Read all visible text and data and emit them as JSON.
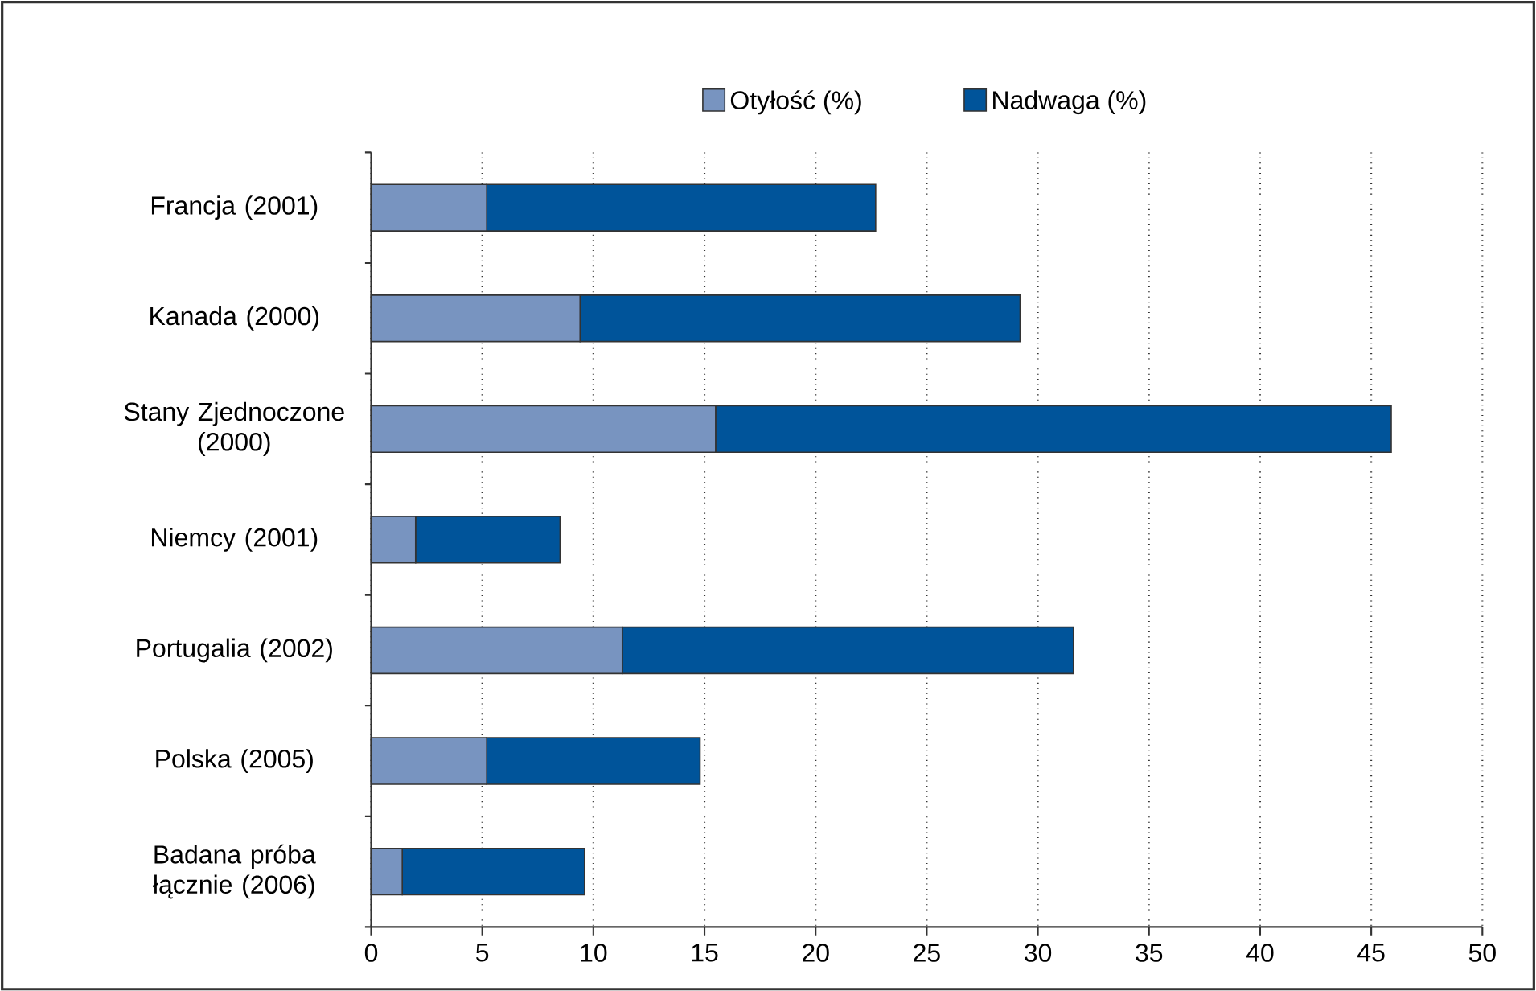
{
  "chart_data": {
    "type": "bar",
    "orientation": "horizontal",
    "stacked": true,
    "categories": [
      "Francja (2001)",
      "Kanada (2000)",
      "Stany Zjednoczone (2000)",
      "Niemcy (2001)",
      "Portugalia (2002)",
      "Polska (2005)",
      "Badana próba łącznie (2006)"
    ],
    "series": [
      {
        "name": "Otyłość (%)",
        "color": "#7894c0",
        "values": [
          5.2,
          9.4,
          15.5,
          2.0,
          11.3,
          5.2,
          1.4
        ]
      },
      {
        "name": "Nadwaga (%)",
        "color": "#00549a",
        "values": [
          17.5,
          19.8,
          30.4,
          6.5,
          20.3,
          9.6,
          8.2
        ]
      }
    ],
    "xlim": [
      0,
      50
    ],
    "xticks": [
      0,
      5,
      10,
      15,
      20,
      25,
      30,
      35,
      40,
      45,
      50
    ],
    "grid": "x",
    "legend": "top"
  }
}
